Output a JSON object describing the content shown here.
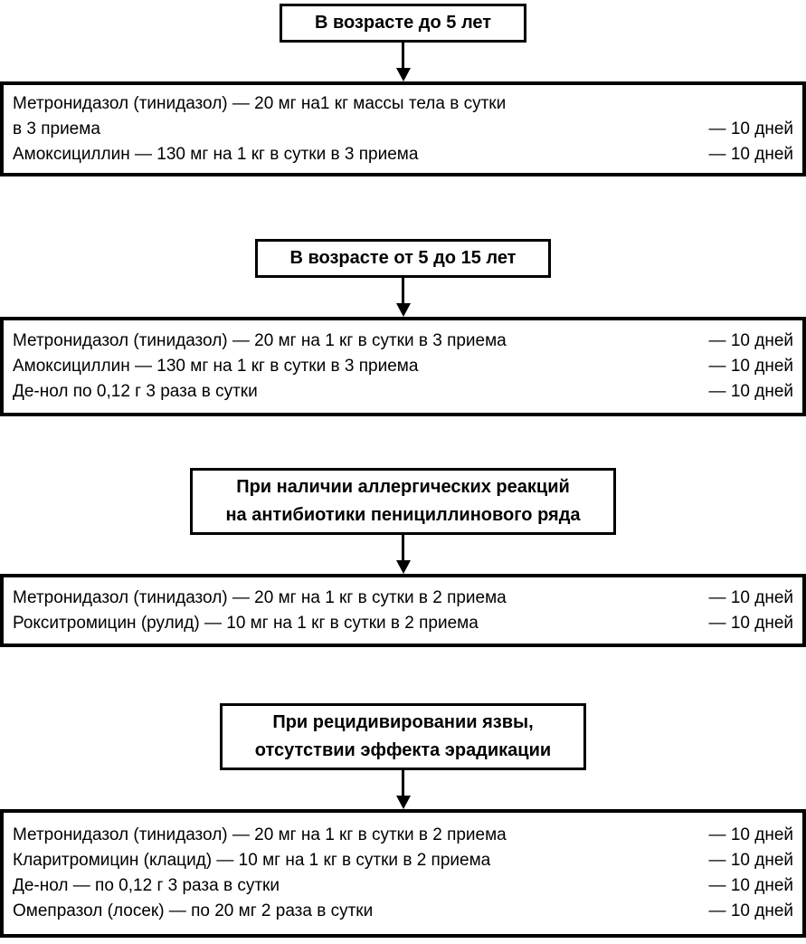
{
  "page": {
    "background_color": "#ffffff",
    "ink_color": "#000000",
    "language": "ru",
    "description_type": "treatment-regimen-flowchart"
  },
  "sections": [
    {
      "name": "age-under-5",
      "header_lines": [
        "В возрасте до 5 лет"
      ],
      "rows": [
        {
          "text": "Метронидазол (тинидазол) — 20 мг на1 кг массы тела в сутки",
          "duration": ""
        },
        {
          "text": "в 3 приема",
          "duration": "— 10 дней"
        },
        {
          "text": "Амоксициллин — 130 мг на 1 кг в сутки в 3 приема",
          "duration": "— 10 дней"
        }
      ]
    },
    {
      "name": "age-5-to-15",
      "header_lines": [
        "В возрасте от 5 до 15 лет"
      ],
      "rows": [
        {
          "text": "Метронидазол (тинидазол) — 20 мг на 1 кг в сутки в 3 приема",
          "duration": "— 10 дней"
        },
        {
          "text": "Амоксициллин — 130 мг на 1 кг в сутки в 3 приема",
          "duration": "— 10 дней"
        },
        {
          "text": "Де-нол по 0,12 г 3 раза в сутки",
          "duration": "— 10 дней"
        }
      ]
    },
    {
      "name": "allergy-to-penicillins",
      "header_lines": [
        "При наличии аллергических реакций",
        "на антибиотики пенициллинового ряда"
      ],
      "rows": [
        {
          "text": "Метронидазол (тинидазол) — 20 мг на 1 кг в сутки в 2 приема",
          "duration": "— 10 дней"
        },
        {
          "text": "Рокситромицин (рулид) — 10 мг на 1 кг в сутки в 2 приема",
          "duration": "— 10 дней"
        }
      ]
    },
    {
      "name": "ulcer-relapse-no-eradication",
      "header_lines": [
        "При рецидивировании язвы,",
        "отсутствии эффекта эрадикации"
      ],
      "rows": [
        {
          "text": "Метронидазол (тинидазол) — 20 мг на 1 кг в сутки в 2 приема",
          "duration": "— 10 дней"
        },
        {
          "text": "Кларитромицин (клацид) — 10 мг на 1 кг в сутки в 2 приема",
          "duration": "— 10 дней"
        },
        {
          "text": "Де-нол — по 0,12 г 3 раза в сутки",
          "duration": "— 10 дней"
        },
        {
          "text": "Омепразол (лосек) — по 20 мг 2 раза в сутки",
          "duration": "— 10 дней"
        }
      ]
    }
  ]
}
